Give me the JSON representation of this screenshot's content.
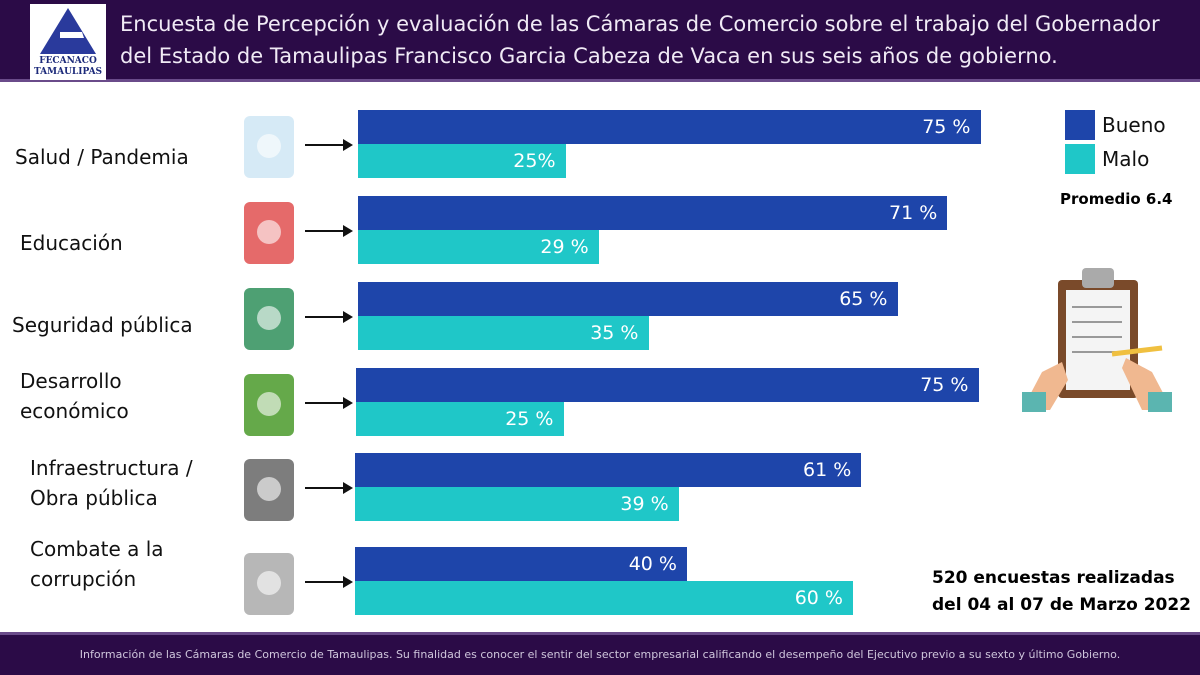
{
  "header": {
    "logo_text_1": "FECANACO",
    "logo_text_2": "TAMAULIPAS",
    "title": "Encuesta de Percepción y evaluación de las Cámaras de Comercio sobre el trabajo del Gobernador del Estado de Tamaulipas Francisco Garcia Cabeza de Vaca en sus seis años de gobierno."
  },
  "legend": {
    "bueno": "Bueno",
    "malo": "Malo"
  },
  "colors": {
    "bueno": "#1e45aa",
    "malo": "#1fc7c8",
    "header": "#2b0b47"
  },
  "promedio": "Promedio 6.4",
  "note_1": "520 encuestas realizadas",
  "note_2": "del 04 al 07 de Marzo 2022",
  "footer": "Información de las Cámaras de Comercio de Tamaulipas. Su finalidad es conocer el sentir del sector empresarial calificando el desempeño del Ejecutivo previo a su sexto y último Gobierno.",
  "chart_data": {
    "type": "bar",
    "orientation": "horizontal",
    "unit": "%",
    "categories": [
      "Salud / Pandemia",
      "Educación",
      "Seguridad pública",
      "Desarrollo económico",
      "Infraestructura / Obra pública",
      "Combate a la corrupción"
    ],
    "icons": [
      "clipboard-icon",
      "books-icon",
      "shield-check-icon",
      "gears-money-icon",
      "city-icon",
      "handcuffs-icon"
    ],
    "series": [
      {
        "name": "Bueno",
        "values": [
          75,
          71,
          65,
          75,
          61,
          40
        ],
        "labels": [
          "75 %",
          "71 %",
          "65 %",
          "75 %",
          "61 %",
          "40 %"
        ]
      },
      {
        "name": "Malo",
        "values": [
          25,
          29,
          35,
          25,
          39,
          60
        ],
        "labels": [
          "25%",
          "29 %",
          "35 %",
          "25 %",
          "39 %",
          "60 %"
        ]
      }
    ],
    "legend": "top-right"
  }
}
